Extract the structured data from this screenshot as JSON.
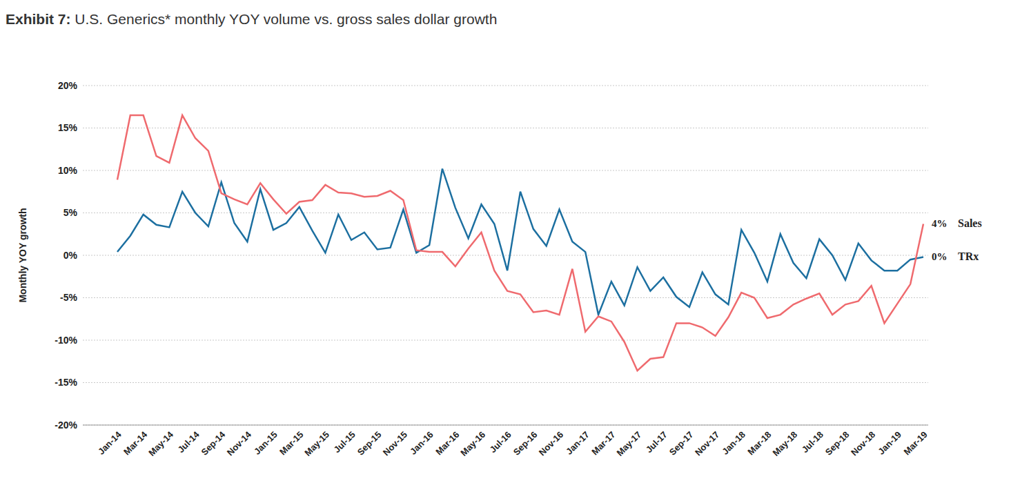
{
  "chart_data": {
    "type": "line",
    "title": "Exhibit 7: U.S. Generics* monthly YOY volume vs. gross sales dollar growth",
    "y_label": "Monthly YOY growth",
    "categories": [
      "Jan-14",
      null,
      "Mar-14",
      null,
      "May-14",
      null,
      "Jul-14",
      null,
      "Sep-14",
      null,
      "Nov-14",
      null,
      "Jan-15",
      null,
      "Mar-15",
      null,
      "May-15",
      null,
      "Jul-15",
      null,
      "Sep-15",
      null,
      "Nov-15",
      null,
      "Jan-16",
      null,
      "Mar-16",
      null,
      "May-16",
      null,
      "Jul-16",
      null,
      "Sep-16",
      null,
      "Nov-16",
      null,
      "Jan-17",
      null,
      "Mar-17",
      null,
      "May-17",
      null,
      "Jul-17",
      null,
      "Sep-17",
      null,
      "Nov-17",
      null,
      "Jan-18",
      null,
      "Mar-18",
      null,
      "May-18",
      null,
      "Jul-18",
      null,
      "Sep-18",
      null,
      "Nov-18",
      null,
      "Jan-19",
      null,
      "Mar-19"
    ],
    "series": [
      {
        "name": "TRx",
        "color": "#1c6fa0",
        "end_label": "0%",
        "values": [
          0.4,
          2.3,
          4.8,
          3.6,
          3.3,
          7.5,
          5.0,
          3.4,
          8.6,
          3.8,
          1.6,
          7.8,
          3.0,
          3.8,
          5.7,
          2.9,
          0.3,
          4.8,
          1.8,
          2.7,
          0.7,
          0.9,
          5.4,
          0.3,
          1.2,
          10.2,
          5.6,
          2.0,
          6.0,
          3.7,
          -1.8,
          7.5,
          3.1,
          1.1,
          5.4,
          1.6,
          0.4,
          -7.0,
          -3.1,
          -5.9,
          -1.4,
          -4.2,
          -2.6,
          -4.9,
          -6.1,
          -2.0,
          -4.6,
          -5.8,
          3.0,
          0.3,
          -3.1,
          2.5,
          -0.9,
          -2.7,
          1.9,
          0.0,
          -2.9,
          1.4,
          -0.6,
          -1.8,
          -1.8,
          -0.5,
          -0.2
        ]
      },
      {
        "name": "Sales",
        "color": "#ef6a6e",
        "end_label": "4%",
        "values": [
          8.9,
          16.5,
          16.5,
          11.7,
          10.9,
          16.5,
          13.8,
          12.3,
          7.3,
          6.6,
          6.0,
          8.5,
          6.6,
          4.9,
          6.3,
          6.5,
          8.3,
          7.4,
          7.3,
          6.9,
          7.0,
          7.6,
          6.5,
          0.6,
          0.4,
          0.4,
          -1.3,
          0.8,
          2.7,
          -1.8,
          -4.2,
          -4.6,
          -6.7,
          -6.5,
          -7.0,
          -1.6,
          -9.0,
          -7.2,
          -7.8,
          -10.2,
          -13.6,
          -12.2,
          -12.0,
          -8.0,
          -8.0,
          -8.5,
          -9.5,
          -7.3,
          -4.4,
          -5.0,
          -7.4,
          -7.0,
          -5.8,
          -5.1,
          -4.5,
          -7.0,
          -5.8,
          -5.4,
          -3.6,
          -8.0,
          -5.7,
          -3.4,
          3.7
        ]
      }
    ],
    "ylim": [
      -20,
      20
    ],
    "yticks": [
      {
        "value": -20,
        "label": "-20%"
      },
      {
        "value": -15,
        "label": "-15%"
      },
      {
        "value": -10,
        "label": "-10%"
      },
      {
        "value": -5,
        "label": "-5%"
      },
      {
        "value": 0,
        "label": "0%"
      },
      {
        "value": 5,
        "label": "5%"
      },
      {
        "value": 10,
        "label": "10%"
      },
      {
        "value": 15,
        "label": "15%"
      },
      {
        "value": 20,
        "label": "20%"
      }
    ],
    "grid": true
  }
}
